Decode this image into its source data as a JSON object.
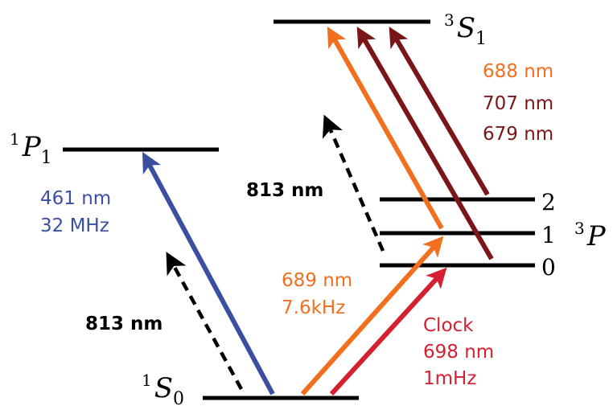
{
  "levels": {
    "s1_triplet": {
      "sup": "3",
      "main": "S",
      "sub": "1"
    },
    "p1_singlet": {
      "sup": "1",
      "main": "P",
      "sub": "1"
    },
    "s0_ground": {
      "sup": "1",
      "main": "S",
      "sub": "0"
    },
    "p_triplet": {
      "sup": "3",
      "main": "P",
      "j2": "2",
      "j1": "1",
      "j0": "0"
    }
  },
  "transitions": {
    "blue": {
      "line1": "461 nm",
      "line2": "32 MHz",
      "color": "#3a4fa0"
    },
    "magic_left": {
      "label": "813 nm",
      "color": "#000000"
    },
    "magic_right": {
      "label": "813 nm",
      "color": "#000000"
    },
    "intercomb": {
      "line1": "689 nm",
      "line2": "7.6kHz",
      "color": "#f07020"
    },
    "clock": {
      "line1": "Clock",
      "line2": "698 nm",
      "line3": "1mHz",
      "color": "#d42030"
    },
    "repump_688": {
      "label": "688 nm",
      "color": "#f07020"
    },
    "repump_707": {
      "label": "707 nm",
      "color": "#7a1518"
    },
    "repump_679": {
      "label": "679 nm",
      "color": "#7a1518"
    }
  }
}
